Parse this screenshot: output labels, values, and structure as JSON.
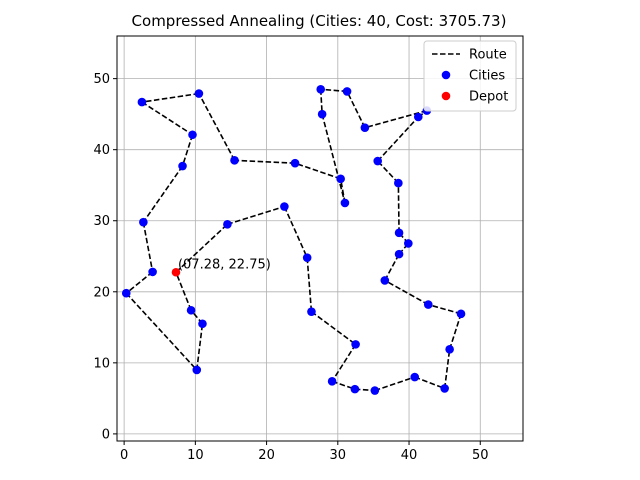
{
  "chart_data": {
    "type": "scatter",
    "title": "Compressed Annealing (Cities: 40, Cost: 3705.73)",
    "xlabel": "",
    "ylabel": "",
    "xlim": [
      -1,
      56
    ],
    "ylim": [
      -1,
      56
    ],
    "xticks": [
      0,
      10,
      20,
      30,
      40,
      50
    ],
    "yticks": [
      0,
      10,
      20,
      30,
      40,
      50
    ],
    "grid": true,
    "legend": {
      "position": "top-right",
      "entries": [
        {
          "label": "Route",
          "style": "dashed-line",
          "color": "#000000"
        },
        {
          "label": "Cities",
          "style": "marker",
          "color": "#0000ff"
        },
        {
          "label": "Depot",
          "style": "marker",
          "color": "#ff0000"
        }
      ]
    },
    "depot": {
      "x": 7.28,
      "y": 22.75,
      "color": "#ff0000"
    },
    "annotation": "(07.28, 22.75)",
    "city_color": "#0000ff",
    "route": [
      [
        7.28,
        22.75
      ],
      [
        14.5,
        29.5
      ],
      [
        22.5,
        32.0
      ],
      [
        25.7,
        24.8
      ],
      [
        26.3,
        17.2
      ],
      [
        32.5,
        12.6
      ],
      [
        29.2,
        7.4
      ],
      [
        32.4,
        6.3
      ],
      [
        35.2,
        6.1
      ],
      [
        40.8,
        8.0
      ],
      [
        45.0,
        6.4
      ],
      [
        45.7,
        11.9
      ],
      [
        47.3,
        16.9
      ],
      [
        42.7,
        18.2
      ],
      [
        36.6,
        21.6
      ],
      [
        38.6,
        25.3
      ],
      [
        39.9,
        26.8
      ],
      [
        38.6,
        28.3
      ],
      [
        38.5,
        35.3
      ],
      [
        35.6,
        38.4
      ],
      [
        41.3,
        44.6
      ],
      [
        42.5,
        45.5
      ],
      [
        33.8,
        43.1
      ],
      [
        31.3,
        48.2
      ],
      [
        27.6,
        48.5
      ],
      [
        27.8,
        45.0
      ],
      [
        31.0,
        32.5
      ],
      [
        30.4,
        35.9
      ],
      [
        24.0,
        38.1
      ],
      [
        15.5,
        38.5
      ],
      [
        10.5,
        47.9
      ],
      [
        2.5,
        46.7
      ],
      [
        9.6,
        42.1
      ],
      [
        8.2,
        37.7
      ],
      [
        2.7,
        29.8
      ],
      [
        4.0,
        22.8
      ],
      [
        0.3,
        19.8
      ],
      [
        10.2,
        9.0
      ],
      [
        11.0,
        15.5
      ],
      [
        9.4,
        17.4
      ],
      [
        7.28,
        22.75
      ]
    ],
    "cities": [
      [
        14.5,
        29.5
      ],
      [
        22.5,
        32.0
      ],
      [
        25.7,
        24.8
      ],
      [
        26.3,
        17.2
      ],
      [
        32.5,
        12.6
      ],
      [
        29.2,
        7.4
      ],
      [
        32.4,
        6.3
      ],
      [
        35.2,
        6.1
      ],
      [
        40.8,
        8.0
      ],
      [
        45.0,
        6.4
      ],
      [
        45.7,
        11.9
      ],
      [
        47.3,
        16.9
      ],
      [
        42.7,
        18.2
      ],
      [
        36.6,
        21.6
      ],
      [
        38.6,
        25.3
      ],
      [
        39.9,
        26.8
      ],
      [
        38.6,
        28.3
      ],
      [
        38.5,
        35.3
      ],
      [
        35.6,
        38.4
      ],
      [
        41.3,
        44.6
      ],
      [
        42.5,
        45.5
      ],
      [
        33.8,
        43.1
      ],
      [
        31.3,
        48.2
      ],
      [
        27.6,
        48.5
      ],
      [
        27.8,
        45.0
      ],
      [
        31.0,
        32.5
      ],
      [
        30.4,
        35.9
      ],
      [
        24.0,
        38.1
      ],
      [
        15.5,
        38.5
      ],
      [
        10.5,
        47.9
      ],
      [
        2.5,
        46.7
      ],
      [
        9.6,
        42.1
      ],
      [
        8.2,
        37.7
      ],
      [
        2.7,
        29.8
      ],
      [
        4.0,
        22.8
      ],
      [
        0.3,
        19.8
      ],
      [
        10.2,
        9.0
      ],
      [
        11.0,
        15.5
      ],
      [
        9.4,
        17.4
      ]
    ]
  }
}
